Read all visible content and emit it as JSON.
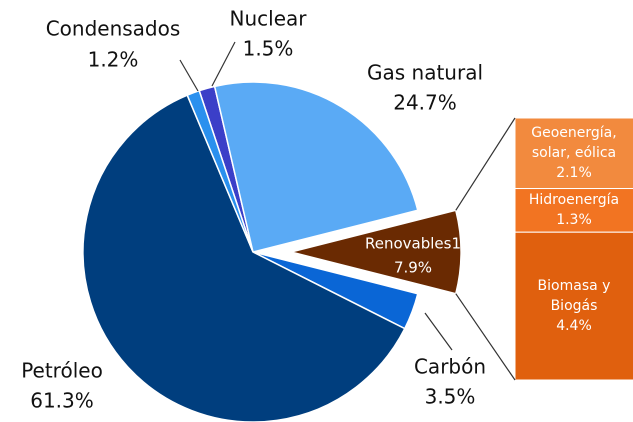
{
  "chart_data": {
    "type": "pie-of-bar",
    "categories": [
      "Nuclear",
      "Gas natural",
      "Renovables1",
      "Carbón",
      "Petróleo",
      "Condensados"
    ],
    "values": [
      1.5,
      24.7,
      7.9,
      3.5,
      61.3,
      1.2
    ],
    "value_labels": [
      "1.5%",
      "24.7%",
      "7.9%",
      "3.5%",
      "61.3%",
      "1.2%"
    ],
    "colors": [
      "#3b3fc8",
      "#5aaaf5",
      "#6a2a02",
      "#0a66d6",
      "#003e7e",
      "#2a90ee"
    ],
    "exploded": "Renovables1",
    "breakdown": {
      "categories": [
        "Geoenergía, solar, eólica",
        "Hidroenergía",
        "Biomasa y Biogás"
      ],
      "values": [
        2.1,
        1.3,
        4.4
      ],
      "value_labels": [
        "2.1%",
        "1.3%",
        "4.4%"
      ],
      "colors": [
        "#f28a3e",
        "#f27422",
        "#e0600e"
      ]
    }
  }
}
